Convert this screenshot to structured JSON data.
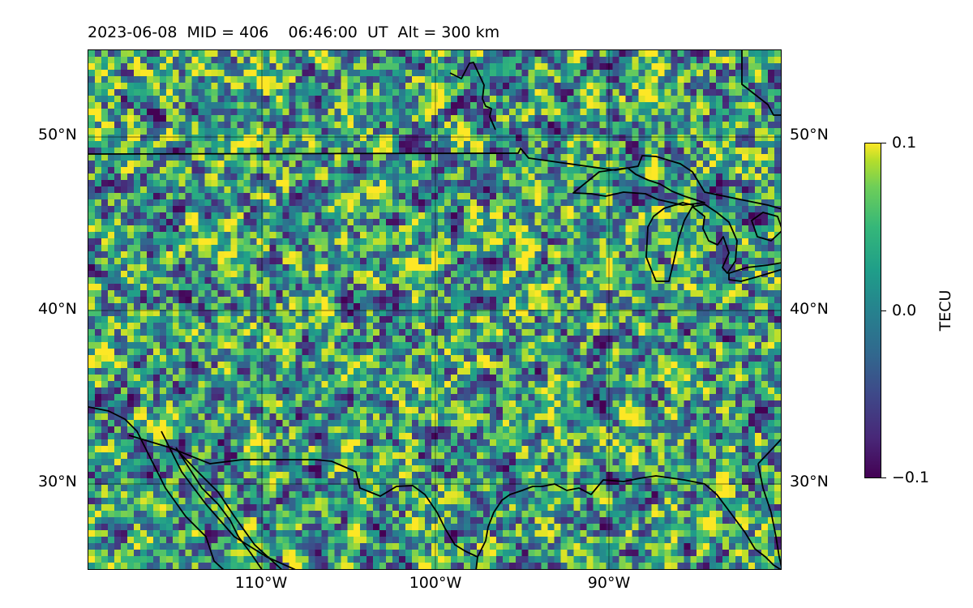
{
  "title": "2023-06-08  MID = 406    06:46:00  UT  Alt = 300 km",
  "map": {
    "extent": {
      "lon_min": -120,
      "lon_max": -80,
      "lat_min": 25,
      "lat_max": 55
    },
    "lat_ticks": [
      {
        "value": 50,
        "label": "50°N"
      },
      {
        "value": 40,
        "label": "40°N"
      },
      {
        "value": 30,
        "label": "30°N"
      }
    ],
    "lon_ticks": [
      {
        "value": -110,
        "label": "110°W"
      },
      {
        "value": -100,
        "label": "100°W"
      },
      {
        "value": -90,
        "label": "90°W"
      }
    ],
    "gridlines": true,
    "colormap": "viridis",
    "coastlines": "black"
  },
  "colorbar": {
    "label": "TECU",
    "min": -0.1,
    "max": 0.1,
    "ticks": [
      {
        "value": 0.1,
        "label": "0.1"
      },
      {
        "value": 0.0,
        "label": "0.0"
      },
      {
        "value": -0.1,
        "label": "−0.1"
      }
    ]
  }
}
